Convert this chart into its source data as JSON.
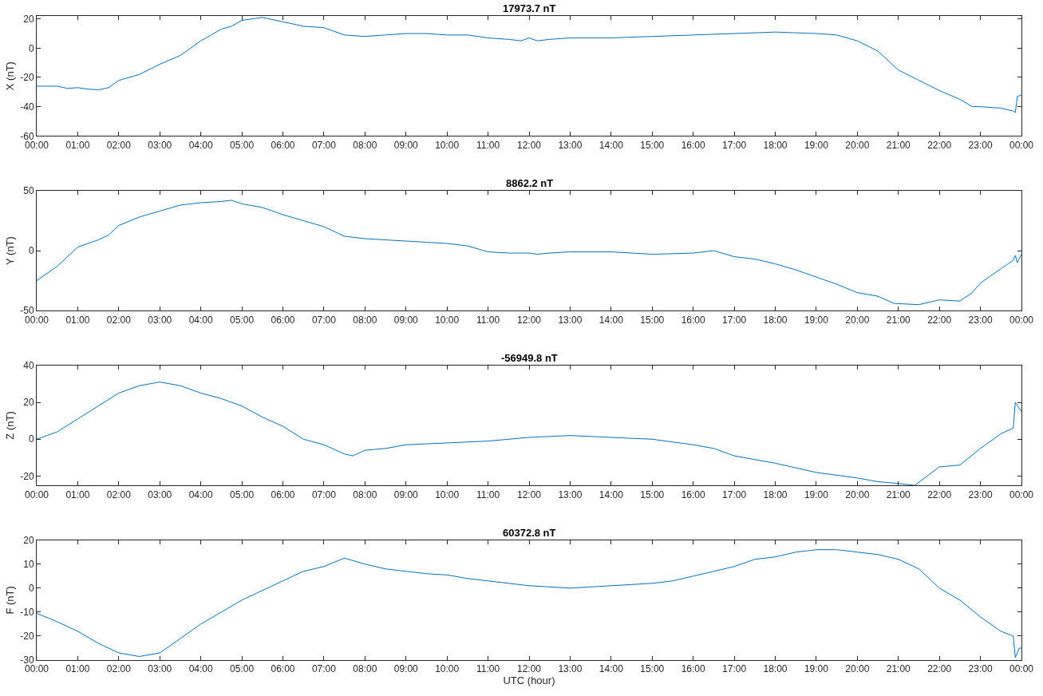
{
  "chart_data": [
    {
      "type": "line",
      "title": "17973.7 nT",
      "ylabel": "X (nT)",
      "ylim": [
        -60,
        22
      ],
      "yticks": [
        -60,
        -40,
        -20,
        0,
        20
      ],
      "xlim": [
        0,
        24
      ],
      "xticks": [
        {
          "value": 0,
          "label": "00:00"
        },
        {
          "value": 1,
          "label": "01:00"
        },
        {
          "value": 2,
          "label": "02:00"
        },
        {
          "value": 3,
          "label": "03:00"
        },
        {
          "value": 4,
          "label": "04:00"
        },
        {
          "value": 5,
          "label": "05:00"
        },
        {
          "value": 6,
          "label": "06:00"
        },
        {
          "value": 7,
          "label": "07:00"
        },
        {
          "value": 8,
          "label": "08:00"
        },
        {
          "value": 9,
          "label": "09:00"
        },
        {
          "value": 10,
          "label": "10:00"
        },
        {
          "value": 11,
          "label": "11:00"
        },
        {
          "value": 12,
          "label": "12:00"
        },
        {
          "value": 13,
          "label": "13:00"
        },
        {
          "value": 14,
          "label": "14:00"
        },
        {
          "value": 15,
          "label": "15:00"
        },
        {
          "value": 16,
          "label": "16:00"
        },
        {
          "value": 17,
          "label": "17:00"
        },
        {
          "value": 18,
          "label": "18:00"
        },
        {
          "value": 19,
          "label": "19:00"
        },
        {
          "value": 20,
          "label": "20:00"
        },
        {
          "value": 21,
          "label": "21:00"
        },
        {
          "value": 22,
          "label": "22:00"
        },
        {
          "value": 23,
          "label": "23:00"
        },
        {
          "value": 24,
          "label": "00:00"
        }
      ],
      "x": [
        0,
        0.5,
        0.75,
        1,
        1.25,
        1.5,
        1.75,
        2,
        2.5,
        3,
        3.5,
        4,
        4.25,
        4.5,
        4.75,
        5,
        5.5,
        6,
        6.5,
        7,
        7.5,
        8,
        8.5,
        9,
        9.5,
        10,
        10.5,
        11,
        11.5,
        11.8,
        12,
        12.2,
        12.5,
        13,
        14,
        15,
        16,
        17,
        18,
        19,
        19.5,
        20,
        20.5,
        21,
        21.5,
        22,
        22.5,
        22.8,
        23,
        23.5,
        23.8,
        23.85,
        23.9,
        24
      ],
      "series": [
        {
          "color": "#0072bd",
          "values": [
            -26,
            -26,
            -27.5,
            -27,
            -28,
            -28.5,
            -27,
            -22,
            -18,
            -11,
            -5,
            5,
            9,
            13,
            15,
            19,
            21,
            18,
            15,
            14,
            9,
            8,
            9,
            10,
            10,
            9,
            9,
            7,
            6,
            5,
            7,
            5,
            6,
            7,
            7,
            8,
            9,
            10,
            11,
            10,
            9,
            5,
            -2,
            -15,
            -22,
            -29,
            -35,
            -40,
            -40,
            -41,
            -43,
            -44,
            -33,
            -32
          ]
        }
      ]
    },
    {
      "type": "line",
      "title": "8862.2 nT",
      "ylabel": "Y (nT)",
      "ylim": [
        -50,
        50
      ],
      "yticks": [
        -50,
        0,
        50
      ],
      "xlim": [
        0,
        24
      ],
      "xticks": [
        {
          "value": 0,
          "label": "00:00"
        },
        {
          "value": 1,
          "label": "01:00"
        },
        {
          "value": 2,
          "label": "02:00"
        },
        {
          "value": 3,
          "label": "03:00"
        },
        {
          "value": 4,
          "label": "04:00"
        },
        {
          "value": 5,
          "label": "05:00"
        },
        {
          "value": 6,
          "label": "06:00"
        },
        {
          "value": 7,
          "label": "07:00"
        },
        {
          "value": 8,
          "label": "08:00"
        },
        {
          "value": 9,
          "label": "09:00"
        },
        {
          "value": 10,
          "label": "10:00"
        },
        {
          "value": 11,
          "label": "11:00"
        },
        {
          "value": 12,
          "label": "12:00"
        },
        {
          "value": 13,
          "label": "13:00"
        },
        {
          "value": 14,
          "label": "14:00"
        },
        {
          "value": 15,
          "label": "15:00"
        },
        {
          "value": 16,
          "label": "16:00"
        },
        {
          "value": 17,
          "label": "17:00"
        },
        {
          "value": 18,
          "label": "18:00"
        },
        {
          "value": 19,
          "label": "19:00"
        },
        {
          "value": 20,
          "label": "20:00"
        },
        {
          "value": 21,
          "label": "21:00"
        },
        {
          "value": 22,
          "label": "22:00"
        },
        {
          "value": 23,
          "label": "23:00"
        },
        {
          "value": 24,
          "label": "00:00"
        }
      ],
      "x": [
        0,
        0.5,
        1,
        1.5,
        1.75,
        2,
        2.5,
        3,
        3.5,
        4,
        4.5,
        4.75,
        5,
        5.5,
        6,
        6.5,
        7,
        7.5,
        8,
        8.5,
        9,
        9.5,
        10,
        10.5,
        11,
        11.5,
        12,
        12.2,
        12.5,
        13,
        14,
        15,
        16,
        16.5,
        17,
        17.5,
        18,
        18.5,
        19,
        19.5,
        20,
        20.5,
        20.9,
        21.5,
        22,
        22.5,
        22.8,
        23,
        23.5,
        23.8,
        23.85,
        23.9,
        24
      ],
      "series": [
        {
          "color": "#0072bd",
          "values": [
            -25,
            -13,
            3,
            9,
            13,
            21,
            28,
            33,
            38,
            40,
            41,
            42,
            39,
            36,
            30,
            25,
            20,
            12,
            10,
            9,
            8,
            7,
            6,
            4,
            -1,
            -2,
            -2,
            -3,
            -2,
            -1,
            -1,
            -3,
            -2,
            0,
            -5,
            -7,
            -11,
            -16,
            -22,
            -28,
            -35,
            -38,
            -44,
            -45,
            -41,
            -42,
            -35,
            -27,
            -15,
            -8,
            -4,
            -10,
            -3
          ]
        }
      ]
    },
    {
      "type": "line",
      "title": "-56949.8 nT",
      "ylabel": "Z (nT)",
      "ylim": [
        -25,
        40
      ],
      "yticks": [
        -20,
        0,
        20,
        40
      ],
      "xlim": [
        0,
        24
      ],
      "xticks": [
        {
          "value": 0,
          "label": "00:00"
        },
        {
          "value": 1,
          "label": "01:00"
        },
        {
          "value": 2,
          "label": "02:00"
        },
        {
          "value": 3,
          "label": "03:00"
        },
        {
          "value": 4,
          "label": "04:00"
        },
        {
          "value": 5,
          "label": "05:00"
        },
        {
          "value": 6,
          "label": "06:00"
        },
        {
          "value": 7,
          "label": "07:00"
        },
        {
          "value": 8,
          "label": "08:00"
        },
        {
          "value": 9,
          "label": "09:00"
        },
        {
          "value": 10,
          "label": "10:00"
        },
        {
          "value": 11,
          "label": "11:00"
        },
        {
          "value": 12,
          "label": "12:00"
        },
        {
          "value": 13,
          "label": "13:00"
        },
        {
          "value": 14,
          "label": "14:00"
        },
        {
          "value": 15,
          "label": "15:00"
        },
        {
          "value": 16,
          "label": "16:00"
        },
        {
          "value": 17,
          "label": "17:00"
        },
        {
          "value": 18,
          "label": "18:00"
        },
        {
          "value": 19,
          "label": "19:00"
        },
        {
          "value": 20,
          "label": "20:00"
        },
        {
          "value": 21,
          "label": "21:00"
        },
        {
          "value": 22,
          "label": "22:00"
        },
        {
          "value": 23,
          "label": "23:00"
        },
        {
          "value": 24,
          "label": "00:00"
        }
      ],
      "x": [
        0,
        0.5,
        1,
        1.5,
        2,
        2.5,
        3,
        3.5,
        4,
        4.5,
        5,
        5.5,
        6,
        6.5,
        7,
        7.5,
        7.7,
        8,
        8.5,
        9,
        10,
        11,
        12,
        13,
        14,
        15,
        16,
        16.5,
        17,
        18,
        19,
        20,
        20.5,
        21,
        21.4,
        22,
        22.5,
        23,
        23.5,
        23.8,
        23.85,
        24
      ],
      "series": [
        {
          "color": "#0072bd",
          "values": [
            0,
            4,
            11,
            18,
            25,
            29,
            31,
            29,
            25,
            22,
            18,
            12,
            7,
            0,
            -3,
            -8,
            -9,
            -6,
            -5,
            -3,
            -2,
            -1,
            1,
            2,
            1,
            0,
            -3,
            -5,
            -9,
            -13,
            -18,
            -21,
            -23,
            -24,
            -25,
            -15,
            -14,
            -5,
            3,
            6,
            20,
            15
          ]
        }
      ]
    },
    {
      "type": "line",
      "title": "60372.8 nT",
      "ylabel": "F (nT)",
      "xlabel": "UTC (hour)",
      "ylim": [
        -30,
        20
      ],
      "yticks": [
        -30,
        -20,
        -10,
        0,
        10,
        20
      ],
      "xlim": [
        0,
        24
      ],
      "xticks": [
        {
          "value": 0,
          "label": "00:00"
        },
        {
          "value": 1,
          "label": "01:00"
        },
        {
          "value": 2,
          "label": "02:00"
        },
        {
          "value": 3,
          "label": "03:00"
        },
        {
          "value": 4,
          "label": "04:00"
        },
        {
          "value": 5,
          "label": "05:00"
        },
        {
          "value": 6,
          "label": "06:00"
        },
        {
          "value": 7,
          "label": "07:00"
        },
        {
          "value": 8,
          "label": "08:00"
        },
        {
          "value": 9,
          "label": "09:00"
        },
        {
          "value": 10,
          "label": "10:00"
        },
        {
          "value": 11,
          "label": "11:00"
        },
        {
          "value": 12,
          "label": "12:00"
        },
        {
          "value": 13,
          "label": "13:00"
        },
        {
          "value": 14,
          "label": "14:00"
        },
        {
          "value": 15,
          "label": "15:00"
        },
        {
          "value": 16,
          "label": "16:00"
        },
        {
          "value": 17,
          "label": "17:00"
        },
        {
          "value": 18,
          "label": "18:00"
        },
        {
          "value": 19,
          "label": "19:00"
        },
        {
          "value": 20,
          "label": "20:00"
        },
        {
          "value": 21,
          "label": "21:00"
        },
        {
          "value": 22,
          "label": "22:00"
        },
        {
          "value": 23,
          "label": "23:00"
        },
        {
          "value": 24,
          "label": "00:00"
        }
      ],
      "x": [
        0,
        0.5,
        1,
        1.5,
        2,
        2.5,
        3,
        3.5,
        4,
        4.5,
        5,
        5.5,
        6,
        6.5,
        7,
        7.5,
        8,
        8.5,
        9,
        9.5,
        10,
        10.5,
        11,
        11.5,
        12,
        12.5,
        13,
        13.5,
        14,
        15,
        15.5,
        16,
        16.5,
        17,
        17.5,
        18,
        18.5,
        19,
        19.5,
        20,
        20.5,
        21,
        21.5,
        22,
        22.5,
        23,
        23.5,
        23.8,
        23.85,
        23.95,
        24
      ],
      "series": [
        {
          "color": "#0072bd",
          "values": [
            -10.5,
            -14,
            -18,
            -23,
            -27,
            -28.5,
            -27,
            -21,
            -15,
            -10,
            -5,
            -1,
            3,
            7,
            9,
            12.5,
            10,
            8,
            7,
            6,
            5.5,
            4,
            3,
            2,
            1,
            0.5,
            0,
            0.5,
            1,
            2,
            3,
            5,
            7,
            9,
            12,
            13,
            15,
            16,
            16,
            15,
            14,
            12,
            8,
            0,
            -5,
            -12,
            -18,
            -20,
            -29,
            -25,
            -25
          ]
        }
      ]
    }
  ]
}
